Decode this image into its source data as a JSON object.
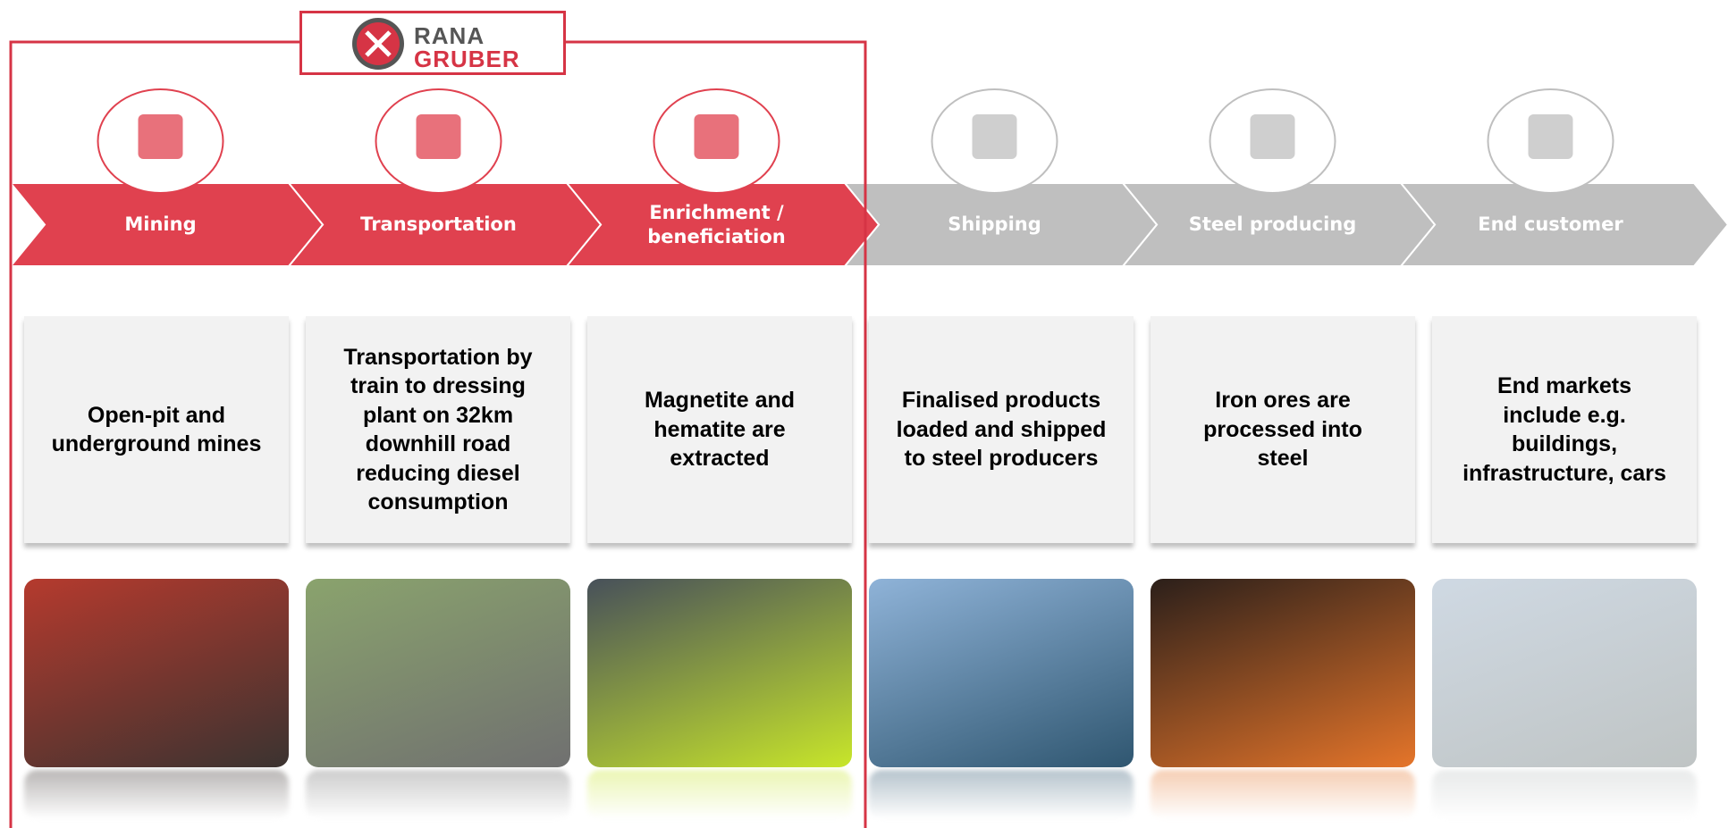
{
  "header": {
    "logo_line1": "RANA",
    "logo_line2": "GRUBER"
  },
  "steps": [
    {
      "label": "Mining",
      "description": "Open-pit and underground mines",
      "color": "#e0414f"
    },
    {
      "label": "Transportation",
      "description": "Transportation by train to dressing plant on 32km downhill road reducing diesel consumption",
      "color": "#e0414f"
    },
    {
      "label": "Enrichment / beneficiation",
      "description": "Magnetite and hematite are extracted",
      "color": "#e0414f"
    },
    {
      "label": "Shipping",
      "description": "Finalised products loaded and shipped to steel producers",
      "color": "#bfbfbf"
    },
    {
      "label": "Steel producing",
      "description": "Iron ores are processed into steel",
      "color": "#bfbfbf"
    },
    {
      "label": "End customer",
      "description": "End markets include e.g. buildings, infrastructure, cars",
      "color": "#bfbfbf"
    }
  ]
}
